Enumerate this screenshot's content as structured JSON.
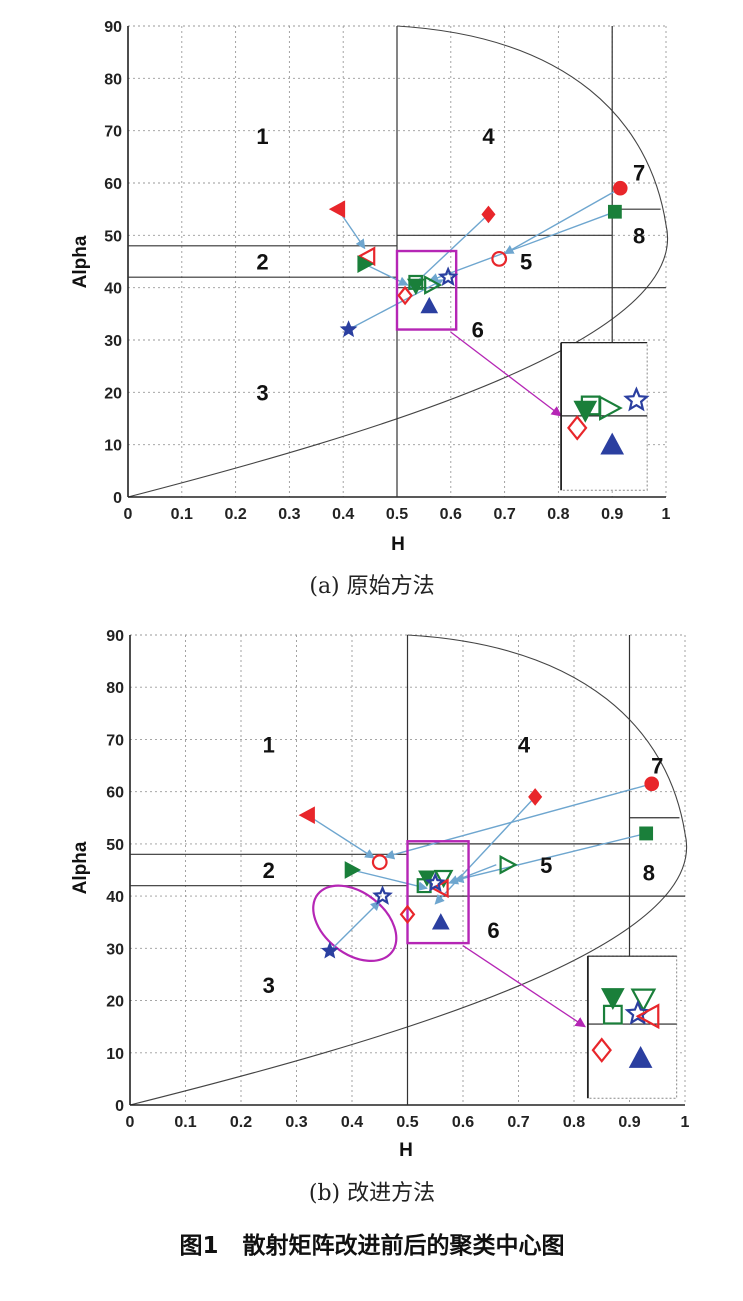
{
  "colors": {
    "red": "#e8262b",
    "green": "#1a7f3a",
    "blue": "#2b3fa0",
    "arrow": "#6ea6cf",
    "magenta": "#b526b5",
    "line": "#333333",
    "grid": "#9a9a9a"
  },
  "chart_data": [
    {
      "type": "scatter",
      "caption": "(a) 原始方法",
      "xlabel": "H",
      "ylabel": "Alpha",
      "xlim": [
        0,
        1
      ],
      "ylim": [
        0,
        90
      ],
      "x_ticks": [
        "0",
        "0.1",
        "0.2",
        "0.3",
        "0.4",
        "0.5",
        "0.6",
        "0.7",
        "0.8",
        "0.9",
        "1"
      ],
      "y_ticks": [
        "0",
        "10",
        "20",
        "30",
        "40",
        "50",
        "60",
        "70",
        "80",
        "90"
      ],
      "grid": true,
      "region_labels": [
        {
          "text": "1",
          "x": 0.25,
          "y": 69
        },
        {
          "text": "4",
          "x": 0.67,
          "y": 69
        },
        {
          "text": "7",
          "x": 0.95,
          "y": 62
        },
        {
          "text": "8",
          "x": 0.95,
          "y": 50
        },
        {
          "text": "2",
          "x": 0.25,
          "y": 45
        },
        {
          "text": "5",
          "x": 0.74,
          "y": 45
        },
        {
          "text": "6",
          "x": 0.65,
          "y": 32
        },
        {
          "text": "3",
          "x": 0.25,
          "y": 20
        }
      ],
      "boundaries": {
        "h1": 0.5,
        "h2": 0.9,
        "a1": 48,
        "a2": 42,
        "a3": 40,
        "a4": 55,
        "a5": 50
      },
      "points": [
        {
          "shape": "triangle-left",
          "fill": true,
          "color": "red",
          "x": 0.39,
          "y": 55
        },
        {
          "shape": "triangle-left",
          "fill": false,
          "color": "red",
          "x": 0.445,
          "y": 46
        },
        {
          "shape": "diamond",
          "fill": true,
          "color": "red",
          "x": 0.67,
          "y": 54
        },
        {
          "shape": "diamond",
          "fill": false,
          "color": "red",
          "x": 0.515,
          "y": 38.5
        },
        {
          "shape": "circle",
          "fill": true,
          "color": "red",
          "x": 0.915,
          "y": 59
        },
        {
          "shape": "circle",
          "fill": false,
          "color": "red",
          "x": 0.69,
          "y": 45.5
        },
        {
          "shape": "square",
          "fill": true,
          "color": "green",
          "x": 0.905,
          "y": 54.5
        },
        {
          "shape": "square",
          "fill": false,
          "color": "green",
          "x": 0.535,
          "y": 41
        },
        {
          "shape": "triangle-right",
          "fill": true,
          "color": "green",
          "x": 0.44,
          "y": 44.5
        },
        {
          "shape": "triangle-right",
          "fill": false,
          "color": "green",
          "x": 0.565,
          "y": 40.5
        },
        {
          "shape": "triangle-down",
          "fill": true,
          "color": "green",
          "x": 0.535,
          "y": 40.3
        },
        {
          "shape": "star",
          "fill": true,
          "color": "blue",
          "x": 0.41,
          "y": 32
        },
        {
          "shape": "star",
          "fill": false,
          "color": "blue",
          "x": 0.595,
          "y": 42
        },
        {
          "shape": "triangle-up",
          "fill": true,
          "color": "blue",
          "x": 0.56,
          "y": 36.5
        }
      ],
      "arrows": [
        {
          "from": [
            0.39,
            55
          ],
          "to": [
            0.44,
            47.5
          ],
          "color": "arrow"
        },
        {
          "from": [
            0.44,
            44.5
          ],
          "to": [
            0.52,
            40.5
          ],
          "color": "arrow"
        },
        {
          "from": [
            0.67,
            54
          ],
          "to": [
            0.52,
            39.5
          ],
          "color": "arrow"
        },
        {
          "from": [
            0.915,
            59
          ],
          "to": [
            0.7,
            46.5
          ],
          "color": "arrow"
        },
        {
          "from": [
            0.905,
            54.5
          ],
          "to": [
            0.56,
            41.3
          ],
          "color": "arrow"
        },
        {
          "from": [
            0.41,
            32
          ],
          "to": [
            0.585,
            41.5
          ],
          "color": "arrow"
        }
      ],
      "zoom_box": {
        "x0": 0.5,
        "x1": 0.61,
        "y0": 32,
        "y1": 47
      },
      "zoom_arrow": {
        "from": [
          0.6,
          31.5
        ],
        "to": [
          0.805,
          15.5
        ]
      },
      "inset": {
        "frame_x0": 0.805,
        "frame_x1": 0.965,
        "frame_y0": 1.3,
        "frame_y1": 29.5,
        "points": [
          {
            "shape": "diamond",
            "fill": false,
            "color": "red",
            "x": 0.835,
            "y": 13.2
          },
          {
            "shape": "square",
            "fill": false,
            "color": "green",
            "x": 0.86,
            "y": 17.5
          },
          {
            "shape": "triangle-down",
            "fill": true,
            "color": "green",
            "x": 0.85,
            "y": 16.5
          },
          {
            "shape": "triangle-right",
            "fill": false,
            "color": "green",
            "x": 0.895,
            "y": 17
          },
          {
            "shape": "star",
            "fill": false,
            "color": "blue",
            "x": 0.945,
            "y": 18.5
          },
          {
            "shape": "triangle-up",
            "fill": true,
            "color": "blue",
            "x": 0.9,
            "y": 10
          }
        ]
      }
    },
    {
      "type": "scatter",
      "caption": "(b) 改进方法",
      "xlabel": "H",
      "ylabel": "Alpha",
      "xlim": [
        0,
        1
      ],
      "ylim": [
        0,
        90
      ],
      "x_ticks": [
        "0",
        "0.1",
        "0.2",
        "0.3",
        "0.4",
        "0.5",
        "0.6",
        "0.7",
        "0.8",
        "0.9",
        "1"
      ],
      "y_ticks": [
        "0",
        "10",
        "20",
        "30",
        "40",
        "50",
        "60",
        "70",
        "80",
        "90"
      ],
      "grid": true,
      "region_labels": [
        {
          "text": "1",
          "x": 0.25,
          "y": 69
        },
        {
          "text": "4",
          "x": 0.71,
          "y": 69
        },
        {
          "text": "7",
          "x": 0.95,
          "y": 65
        },
        {
          "text": "8",
          "x": 0.935,
          "y": 44.5
        },
        {
          "text": "2",
          "x": 0.25,
          "y": 45
        },
        {
          "text": "5",
          "x": 0.75,
          "y": 46
        },
        {
          "text": "6",
          "x": 0.655,
          "y": 33.5
        },
        {
          "text": "3",
          "x": 0.25,
          "y": 23
        }
      ],
      "boundaries": {
        "h1": 0.5,
        "h2": 0.9,
        "a1": 48,
        "a2": 42,
        "a3": 40,
        "a4": 55,
        "a5": 50
      },
      "points": [
        {
          "shape": "triangle-left",
          "fill": true,
          "color": "red",
          "x": 0.32,
          "y": 55.5
        },
        {
          "shape": "circle",
          "fill": false,
          "color": "red",
          "x": 0.45,
          "y": 46.5
        },
        {
          "shape": "diamond",
          "fill": true,
          "color": "red",
          "x": 0.73,
          "y": 59
        },
        {
          "shape": "diamond",
          "fill": false,
          "color": "red",
          "x": 0.5,
          "y": 36.5
        },
        {
          "shape": "circle",
          "fill": true,
          "color": "red",
          "x": 0.94,
          "y": 61.5
        },
        {
          "shape": "triangle-right",
          "fill": true,
          "color": "green",
          "x": 0.4,
          "y": 45
        },
        {
          "shape": "triangle-right",
          "fill": false,
          "color": "green",
          "x": 0.68,
          "y": 46
        },
        {
          "shape": "square",
          "fill": true,
          "color": "green",
          "x": 0.93,
          "y": 52
        },
        {
          "shape": "square",
          "fill": false,
          "color": "green",
          "x": 0.53,
          "y": 42
        },
        {
          "shape": "triangle-down",
          "fill": true,
          "color": "green",
          "x": 0.535,
          "y": 43.5
        },
        {
          "shape": "triangle-down",
          "fill": false,
          "color": "green",
          "x": 0.565,
          "y": 43.5
        },
        {
          "shape": "triangle-left",
          "fill": false,
          "color": "red",
          "x": 0.56,
          "y": 41.5
        },
        {
          "shape": "star",
          "fill": true,
          "color": "blue",
          "x": 0.36,
          "y": 29.5
        },
        {
          "shape": "star",
          "fill": false,
          "color": "blue",
          "x": 0.455,
          "y": 40
        },
        {
          "shape": "star",
          "fill": false,
          "color": "blue",
          "x": 0.55,
          "y": 42.5
        },
        {
          "shape": "triangle-up",
          "fill": true,
          "color": "blue",
          "x": 0.56,
          "y": 35
        }
      ],
      "arrows": [
        {
          "from": [
            0.32,
            55.5
          ],
          "to": [
            0.44,
            47.3
          ],
          "color": "arrow"
        },
        {
          "from": [
            0.4,
            45
          ],
          "to": [
            0.535,
            41.5
          ],
          "color": "arrow"
        },
        {
          "from": [
            0.36,
            29.5
          ],
          "to": [
            0.45,
            39
          ],
          "color": "arrow"
        },
        {
          "from": [
            0.73,
            59
          ],
          "to": [
            0.55,
            38.5
          ],
          "color": "arrow"
        },
        {
          "from": [
            0.94,
            61.5
          ],
          "to": [
            0.46,
            47.5
          ],
          "color": "arrow"
        },
        {
          "from": [
            0.93,
            52
          ],
          "to": [
            0.585,
            43
          ],
          "color": "arrow"
        },
        {
          "from": [
            0.66,
            46
          ],
          "to": [
            0.575,
            42.5
          ],
          "color": "arrow"
        }
      ],
      "zoom_box": {
        "x0": 0.5,
        "x1": 0.61,
        "y0": 31,
        "y1": 50.5
      },
      "zoom_arrow": {
        "from": [
          0.6,
          30.5
        ],
        "to": [
          0.82,
          15
        ]
      },
      "ellipse": {
        "cx": 0.405,
        "cy": 34.8,
        "rx": 0.055,
        "ry": 9,
        "angle": -52
      },
      "inset": {
        "frame_x0": 0.825,
        "frame_x1": 0.985,
        "frame_y0": 1.3,
        "frame_y1": 28.5,
        "points": [
          {
            "shape": "diamond",
            "fill": false,
            "color": "red",
            "x": 0.85,
            "y": 10.5
          },
          {
            "shape": "triangle-down",
            "fill": true,
            "color": "green",
            "x": 0.87,
            "y": 20.5
          },
          {
            "shape": "triangle-down",
            "fill": false,
            "color": "green",
            "x": 0.925,
            "y": 20.3
          },
          {
            "shape": "square",
            "fill": false,
            "color": "green",
            "x": 0.87,
            "y": 17.3
          },
          {
            "shape": "star",
            "fill": false,
            "color": "blue",
            "x": 0.915,
            "y": 17.5
          },
          {
            "shape": "triangle-left",
            "fill": false,
            "color": "red",
            "x": 0.935,
            "y": 17
          },
          {
            "shape": "triangle-up",
            "fill": true,
            "color": "blue",
            "x": 0.92,
            "y": 9
          }
        ]
      }
    }
  ],
  "figure_caption": "图1   散射矩阵改进前后的聚类中心图"
}
